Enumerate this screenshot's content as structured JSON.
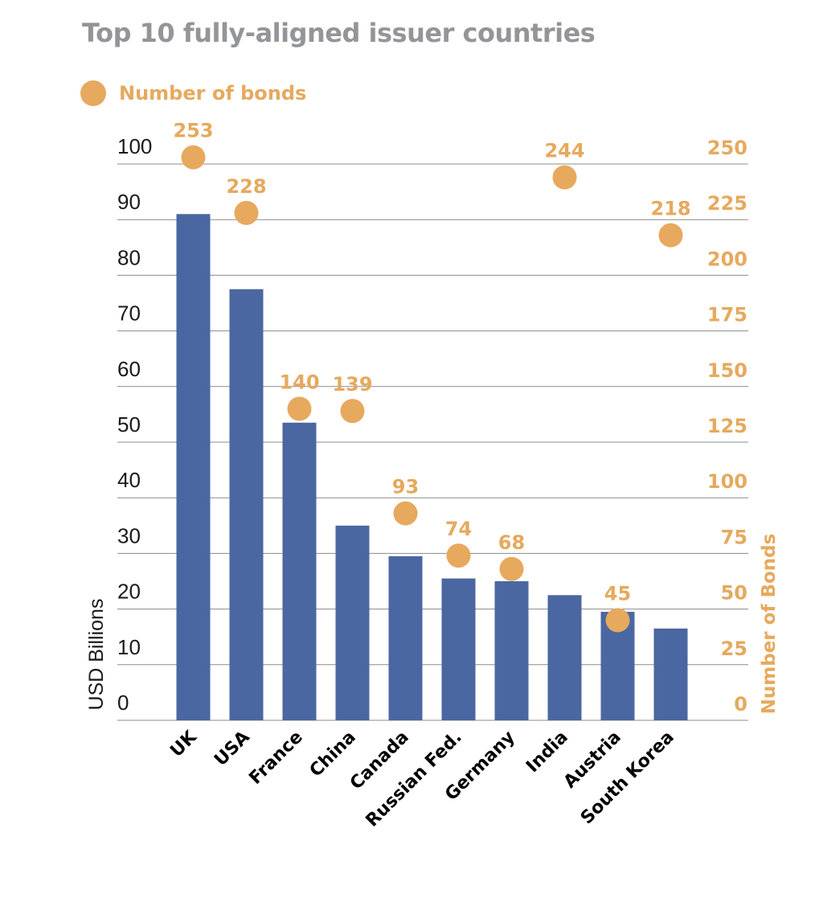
{
  "title": "Top 10 fully-aligned issuer countries",
  "legend": {
    "label": "Number of bonds",
    "marker_color": "#e6a95e"
  },
  "colors": {
    "bar": "#4a67a1",
    "dot": "#e6a95e",
    "grid": "#8c8c8c",
    "title": "#939598",
    "axis_text": "#1a1a1a"
  },
  "chart_data": {
    "type": "bar",
    "title": "Top 10 fully-aligned issuer countries",
    "categories": [
      "UK",
      "USA",
      "France",
      "China",
      "Canada",
      "Russian Fed.",
      "Germany",
      "India",
      "Austria",
      "South Korea"
    ],
    "series": [
      {
        "name": "",
        "axis": "left",
        "kind": "bar",
        "values": [
          91,
          77.5,
          53.5,
          35,
          29.5,
          25.5,
          25,
          22.5,
          19.5,
          16.5
        ]
      },
      {
        "name": "Number of bonds",
        "axis": "right",
        "kind": "scatter",
        "values": [
          253,
          228,
          140,
          139,
          93,
          74,
          68,
          244,
          45,
          218
        ]
      }
    ],
    "ylabel": "USD Billions",
    "ylim": [
      0,
      100
    ],
    "yticks": [
      "0",
      "10",
      "20",
      "30",
      "40",
      "50",
      "60",
      "70",
      "80",
      "90",
      "100"
    ],
    "y2label": "Number of Bonds",
    "y2lim": [
      0,
      250
    ],
    "y2ticks": [
      "0",
      "25",
      "50",
      "75",
      "100",
      "125",
      "150",
      "175",
      "200",
      "225",
      "250"
    ],
    "grid": true,
    "legend_position": "top-left"
  }
}
